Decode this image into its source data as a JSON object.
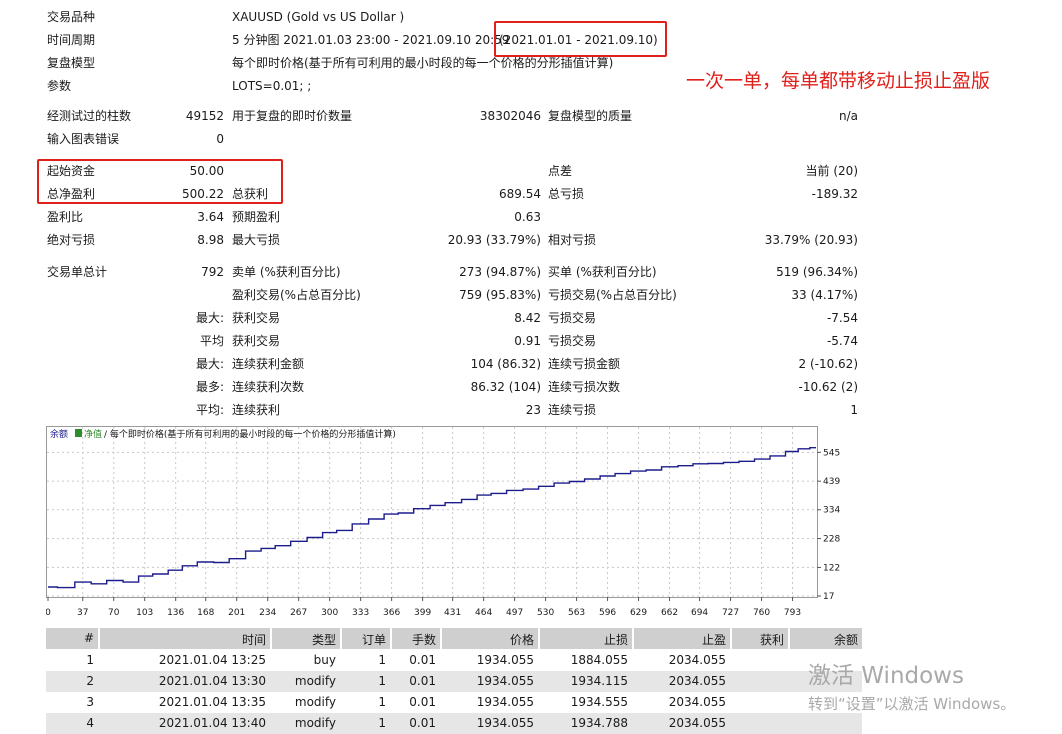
{
  "header": [
    {
      "label": "交易品种",
      "value": "XAUUSD (Gold vs US Dollar )"
    },
    {
      "label": "时间周期",
      "value": "5 分钟图 2021.01.03 23:00 - 2021.09.10 20:59",
      "extra": "(2021.01.01 - 2021.09.10)"
    },
    {
      "label": "复盘模型",
      "value": "每个即时价格(基于所有可利用的最小时段的每一个价格的分形插值计算)"
    },
    {
      "label": "参数",
      "value": "LOTS=0.01; ;"
    }
  ],
  "annotation": "一次一单，每单都带移动止损止盈版",
  "stats": {
    "bars_label": "经测试过的柱数",
    "bars_value": "49152",
    "ticks_label": "用于复盘的即时价数量",
    "ticks_value": "38302046",
    "quality_label": "复盘模型的质量",
    "quality_value": "n/a",
    "errors_label": "输入图表错误",
    "errors_value": "0",
    "initial_deposit_label": "起始资金",
    "initial_deposit_value": "50.00",
    "spread_label": "点差",
    "spread_value": "当前 (20)",
    "net_profit_label": "总净盈利",
    "net_profit_value": "500.22",
    "gross_profit_label": "总获利",
    "gross_profit_value": "689.54",
    "gross_loss_label": "总亏损",
    "gross_loss_value": "-189.32",
    "profit_factor_label": "盈利比",
    "profit_factor_value": "3.64",
    "expected_payoff_label": "预期盈利",
    "expected_payoff_value": "0.63",
    "abs_drawdown_label": "绝对亏损",
    "abs_drawdown_value": "8.98",
    "max_drawdown_label": "最大亏损",
    "max_drawdown_value": "20.93 (33.79%)",
    "rel_drawdown_label": "相对亏损",
    "rel_drawdown_value": "33.79% (20.93)",
    "total_trades_label": "交易单总计",
    "total_trades_value": "792",
    "short_label": "卖单 (%获利百分比)",
    "short_value": "273 (94.87%)",
    "long_label": "买单 (%获利百分比)",
    "long_value": "519 (96.34%)",
    "profit_trades_label": "盈利交易(%占总百分比)",
    "profit_trades_value": "759 (95.83%)",
    "loss_trades_label": "亏损交易(%占总百分比)",
    "loss_trades_value": "33 (4.17%)",
    "largest_prefix": "最大:",
    "largest_profit_label": "获利交易",
    "largest_profit_value": "8.42",
    "largest_loss_label": "亏损交易",
    "largest_loss_value": "-7.54",
    "average_prefix": "平均",
    "average_profit_label": "获利交易",
    "average_profit_value": "0.91",
    "average_loss_label": "亏损交易",
    "average_loss_value": "-5.74",
    "max_consec_prefix": "最大:",
    "max_consec_wins_label": "连续获利金额",
    "max_consec_wins_value": "104 (86.32)",
    "max_consec_losses_label": "连续亏损金额",
    "max_consec_losses_value": "2 (-10.62)",
    "most_consec_prefix": "最多:",
    "most_consec_wins_label": "连续获利次数",
    "most_consec_wins_value": "86.32 (104)",
    "most_consec_losses_label": "连续亏损次数",
    "most_consec_losses_value": "-10.62 (2)",
    "avg_consec_prefix": "平均:",
    "avg_consec_wins_label": "连续获利",
    "avg_consec_wins_value": "23",
    "avg_consec_losses_label": "连续亏损",
    "avg_consec_losses_value": "1"
  },
  "chart_data": {
    "type": "line",
    "legend_balance": "余额",
    "legend_equity": "净值",
    "legend_text": "/ 每个即时价格(基于所有可利用的最小时段的每一个价格的分形插值计算)",
    "x_ticks": [
      0,
      37,
      70,
      103,
      136,
      168,
      201,
      234,
      267,
      300,
      333,
      366,
      399,
      431,
      464,
      497,
      530,
      563,
      596,
      629,
      662,
      694,
      727,
      760,
      793
    ],
    "y_ticks": [
      17,
      122,
      228,
      334,
      439,
      545
    ],
    "xlim": [
      0,
      818
    ],
    "ylim": [
      17,
      583
    ],
    "balance_color": "#1c1c8c",
    "x": [
      0,
      20,
      37,
      55,
      70,
      90,
      103,
      120,
      136,
      150,
      168,
      185,
      201,
      220,
      234,
      250,
      267,
      285,
      300,
      315,
      333,
      350,
      366,
      380,
      399,
      415,
      431,
      450,
      464,
      480,
      497,
      515,
      530,
      548,
      563,
      580,
      596,
      612,
      629,
      645,
      662,
      680,
      694,
      712,
      727,
      745,
      760,
      778,
      793,
      805,
      818
    ],
    "y": [
      50,
      48,
      68,
      62,
      74,
      68,
      90,
      98,
      112,
      128,
      142,
      140,
      154,
      182,
      192,
      202,
      218,
      232,
      250,
      258,
      282,
      300,
      318,
      322,
      338,
      350,
      360,
      372,
      388,
      394,
      405,
      410,
      420,
      432,
      438,
      447,
      458,
      467,
      476,
      480,
      492,
      496,
      503,
      504,
      508,
      512,
      520,
      532,
      548,
      558,
      562
    ]
  },
  "trades": {
    "headers": [
      "#",
      "时间",
      "类型",
      "订单",
      "手数",
      "价格",
      "止损",
      "止盈",
      "获利",
      "余额"
    ],
    "rows": [
      [
        "1",
        "2021.01.04 13:25",
        "buy",
        "1",
        "0.01",
        "1934.055",
        "1884.055",
        "2034.055",
        "",
        ""
      ],
      [
        "2",
        "2021.01.04 13:30",
        "modify",
        "1",
        "0.01",
        "1934.055",
        "1934.115",
        "2034.055",
        "",
        ""
      ],
      [
        "3",
        "2021.01.04 13:35",
        "modify",
        "1",
        "0.01",
        "1934.055",
        "1934.555",
        "2034.055",
        "",
        ""
      ],
      [
        "4",
        "2021.01.04 13:40",
        "modify",
        "1",
        "0.01",
        "1934.055",
        "1934.788",
        "2034.055",
        "",
        ""
      ]
    ]
  },
  "watermark": {
    "title": "激活 Windows",
    "subtitle": "转到“设置”以激活 Windows。"
  }
}
